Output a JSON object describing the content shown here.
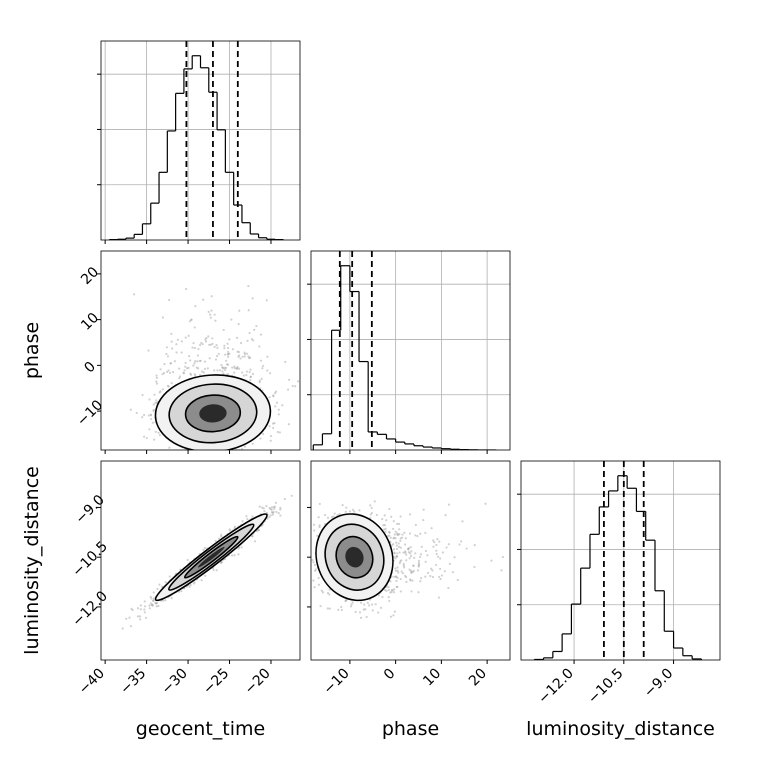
{
  "chart_data": {
    "type": "corner",
    "parameters": [
      "geocent_time",
      "phase",
      "luminosity_distance"
    ],
    "axis_labels": {
      "geocent_time": "geocent_time",
      "phase": "phase",
      "luminosity_distance": "luminosity_distance"
    },
    "ranges": {
      "geocent_time": [
        -40.5,
        -16.5
      ],
      "phase": [
        -18.5,
        25
      ],
      "luminosity_distance": [
        -13.6,
        -7.6
      ]
    },
    "ticks": {
      "geocent_time": [
        {
          "v": -40,
          "label": "−40"
        },
        {
          "v": -35,
          "label": "−35"
        },
        {
          "v": -30,
          "label": "−30"
        },
        {
          "v": -25,
          "label": "−25"
        },
        {
          "v": -20,
          "label": "−20"
        }
      ],
      "phase": [
        {
          "v": -10,
          "label": "−10"
        },
        {
          "v": 0,
          "label": "0"
        },
        {
          "v": 10,
          "label": "10"
        },
        {
          "v": 20,
          "label": "20"
        }
      ],
      "luminosity_distance": [
        {
          "v": -12.0,
          "label": "−12.0"
        },
        {
          "v": -10.5,
          "label": "−10.5"
        },
        {
          "v": -9.0,
          "label": "−9.0"
        }
      ]
    },
    "grid": true,
    "quantiles": {
      "geocent_time": [
        -30.2,
        -27.0,
        -24.0
      ],
      "phase": [
        -12.2,
        -9.5,
        -5.2
      ],
      "luminosity_distance": [
        -11.1,
        -10.5,
        -9.9
      ]
    },
    "histograms": {
      "geocent_time": {
        "edges": [
          -39.5,
          -38.5,
          -37.5,
          -36.5,
          -35.5,
          -34.5,
          -33.5,
          -32.5,
          -31.5,
          -30.5,
          -29.5,
          -28.5,
          -27.5,
          -26.5,
          -25.5,
          -24.5,
          -23.5,
          -22.5,
          -21.5,
          -20.5,
          -19.5,
          -18.5
        ],
        "counts": [
          1,
          2,
          5,
          15,
          43,
          98,
          180,
          290,
          390,
          455,
          490,
          458,
          393,
          293,
          180,
          93,
          46,
          16,
          6,
          2,
          1
        ]
      },
      "phase": {
        "edges": [
          -18,
          -16,
          -14,
          -12,
          -10,
          -8,
          -6,
          -4,
          -2,
          0,
          2,
          4,
          6,
          8,
          10,
          12,
          14,
          16,
          18,
          20,
          22
        ],
        "counts": [
          28,
          88,
          650,
          1000,
          860,
          480,
          98,
          85,
          60,
          43,
          33,
          23,
          16,
          11,
          7,
          4,
          2,
          1,
          0,
          0
        ]
      },
      "luminosity_distance": {
        "edges": [
          -13.2,
          -12.92,
          -12.64,
          -12.36,
          -12.08,
          -11.8,
          -11.52,
          -11.24,
          -10.96,
          -10.68,
          -10.4,
          -10.12,
          -9.84,
          -9.56,
          -9.28,
          -9.0,
          -8.72,
          -8.44,
          -8.16
        ],
        "counts": [
          2,
          8,
          32,
          98,
          210,
          345,
          472,
          575,
          635,
          692,
          645,
          558,
          450,
          260,
          108,
          45,
          16,
          4
        ]
      }
    },
    "pair_plots": [
      {
        "x": "geocent_time",
        "y": "phase",
        "mean": [
          -27.0,
          -10.5
        ],
        "sd": [
          3.3,
          4.0
        ],
        "corr": 0.05
      },
      {
        "x": "geocent_time",
        "y": "luminosity_distance",
        "mean": [
          -27.2,
          -10.5
        ],
        "sd": [
          3.2,
          0.62
        ],
        "corr": 0.97
      },
      {
        "x": "phase",
        "y": "luminosity_distance",
        "mean": [
          -9.0,
          -10.5
        ],
        "sd": [
          4.0,
          0.62
        ],
        "corr": -0.1
      }
    ]
  }
}
